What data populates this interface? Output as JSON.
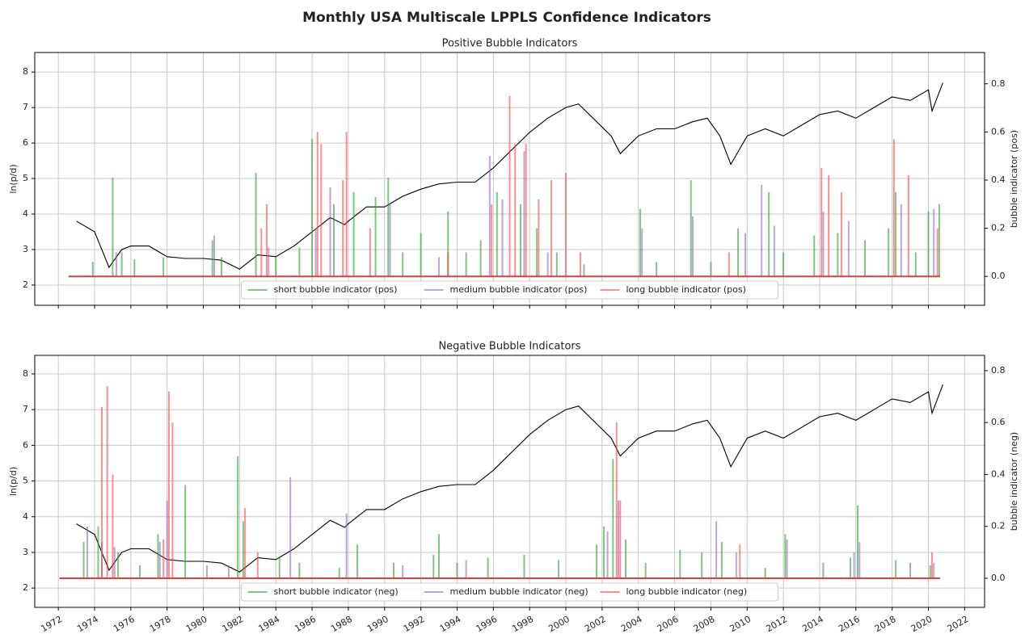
{
  "title": "Monthly USA Multiscale LPPLS Confidence Indicators",
  "chart_data": [
    {
      "type": "line",
      "title": "Positive Bubble Indicators",
      "ylabel": "ln(p/d)",
      "y2label": "bubble indicator (pos)",
      "xlim": [
        1970.7,
        2023.1
      ],
      "ylim": [
        1.43,
        8.55
      ],
      "yticks": [
        2,
        3,
        4,
        5,
        6,
        7,
        8
      ],
      "y2lim": [
        -0.12,
        0.93
      ],
      "y2ticks": [
        {
          "value": 0,
          "label": "0.0"
        },
        0.2,
        0.4,
        0.6,
        0.8
      ],
      "grid": true,
      "legend": "lower center",
      "series": [
        {
          "color": "#000000",
          "x": [
            1973,
            1974,
            1974.8,
            1975.5,
            1976,
            1977,
            1978,
            1979,
            1980,
            1981,
            1982,
            1983,
            1984,
            1985,
            1986,
            1987,
            1987.8,
            1988,
            1989,
            1990,
            1991,
            1992,
            1993,
            1994,
            1995,
            1996,
            1997,
            1998,
            1999,
            2000,
            2000.7,
            2001.5,
            2002.5,
            2003,
            2004,
            2005,
            2006,
            2007,
            2007.8,
            2008.5,
            2009.1,
            2010,
            2011,
            2012,
            2013,
            2014,
            2015,
            2016,
            2017,
            2018,
            2019,
            2020,
            2020.2,
            2020.8
          ],
          "values": [
            3.8,
            3.5,
            2.5,
            3.0,
            3.1,
            3.1,
            2.8,
            2.75,
            2.75,
            2.7,
            2.45,
            2.85,
            2.8,
            3.1,
            3.5,
            3.9,
            3.7,
            3.8,
            4.2,
            4.2,
            4.5,
            4.7,
            4.85,
            4.9,
            4.9,
            5.3,
            5.8,
            6.3,
            6.7,
            7.0,
            7.1,
            6.7,
            6.2,
            5.7,
            6.2,
            6.4,
            6.4,
            6.6,
            6.7,
            6.2,
            5.4,
            6.2,
            6.4,
            6.2,
            6.5,
            6.8,
            6.9,
            6.7,
            7.0,
            7.3,
            7.2,
            7.5,
            6.9,
            7.7
          ]
        },
        {
          "name": "short bubble indicator (pos)",
          "color": "#2ca02c",
          "axis": "y2",
          "x": [
            1973.9,
            1975,
            1975.5,
            1976.2,
            1977.8,
            1980.5,
            1981,
            1982.9,
            1984,
            1985.3,
            1986,
            1987.2,
            1988.3,
            1989.5,
            1990.2,
            1991,
            1992,
            1993.5,
            1994.5,
            1995.3,
            1996.2,
            1997.5,
            1998.4,
            1999.5,
            2001,
            2004.1,
            2005,
            2006.9,
            2008,
            2009.5,
            2011.2,
            2012,
            2013.7,
            2015,
            2016.5,
            2017.8,
            2018.2,
            2019.3,
            2020,
            2020.6
          ],
          "values": [
            0.06,
            0.41,
            0.1,
            0.07,
            0.08,
            0.15,
            0.08,
            0.43,
            0.08,
            0.12,
            0.57,
            0.3,
            0.35,
            0.33,
            0.41,
            0.1,
            0.18,
            0.27,
            0.1,
            0.15,
            0.35,
            0.3,
            0.2,
            0.1,
            0.05,
            0.28,
            0.06,
            0.4,
            0.06,
            0.2,
            0.35,
            0.1,
            0.17,
            0.18,
            0.15,
            0.2,
            0.35,
            0.1,
            0.27,
            0.3
          ]
        },
        {
          "name": "medium bubble indicator (pos)",
          "color": "#9467bd",
          "axis": "y2",
          "x": [
            1975.2,
            1980.6,
            1983.6,
            1986.2,
            1987,
            1990.3,
            1993,
            1995.8,
            1996.5,
            1997.7,
            1999,
            2004.2,
            2007,
            2009.9,
            2010.8,
            2011.5,
            2014.2,
            2015.6,
            2018.5,
            2020.3
          ],
          "values": [
            0.1,
            0.17,
            0.12,
            0.2,
            0.37,
            0.3,
            0.08,
            0.5,
            0.32,
            0.52,
            0.1,
            0.2,
            0.25,
            0.18,
            0.38,
            0.21,
            0.27,
            0.23,
            0.3,
            0.28
          ]
        },
        {
          "name": "long bubble indicator (pos)",
          "color": "#ff4444",
          "axis": "y2",
          "x": [
            1983.2,
            1983.5,
            1986.3,
            1986.5,
            1987.7,
            1987.9,
            1989.2,
            1993.5,
            1995.9,
            1996.9,
            1997.2,
            1997.8,
            1998.5,
            1999.2,
            2000,
            2000.8,
            2009,
            2014.1,
            2014.5,
            2015.2,
            2018.1,
            2018.9,
            2020.5
          ],
          "values": [
            0.2,
            0.3,
            0.6,
            0.55,
            0.4,
            0.6,
            0.2,
            0.1,
            0.3,
            0.75,
            0.55,
            0.55,
            0.32,
            0.4,
            0.43,
            0.1,
            0.1,
            0.45,
            0.42,
            0.35,
            0.57,
            0.42,
            0.2
          ]
        }
      ]
    },
    {
      "type": "line",
      "title": "Negative Bubble Indicators",
      "ylabel": "ln(p/d)",
      "y2label": "bubble indicator (neg)",
      "xlim": [
        1970.7,
        2023.1
      ],
      "xticks": [
        1972,
        1974,
        1976,
        1978,
        1980,
        1982,
        1984,
        1986,
        1988,
        1990,
        1992,
        1994,
        1996,
        1998,
        2000,
        2002,
        2004,
        2006,
        2008,
        2010,
        2012,
        2014,
        2016,
        2018,
        2020,
        2022
      ],
      "ylim": [
        1.46,
        8.52
      ],
      "yticks": [
        2,
        3,
        4,
        5,
        6,
        7,
        8
      ],
      "y2lim": [
        -0.112,
        0.859
      ],
      "y2ticks": [
        {
          "value": 0,
          "label": "0.0"
        },
        0.2,
        0.4,
        0.6,
        0.8
      ],
      "grid": true,
      "legend": "lower center",
      "series": [
        {
          "color": "#000000",
          "x": [
            1973,
            1974,
            1974.8,
            1975.5,
            1976,
            1977,
            1978,
            1979,
            1980,
            1981,
            1982,
            1983,
            1984,
            1985,
            1986,
            1987,
            1987.8,
            1988,
            1989,
            1990,
            1991,
            1992,
            1993,
            1994,
            1995,
            1996,
            1997,
            1998,
            1999,
            2000,
            2000.7,
            2001.5,
            2002.5,
            2003,
            2004,
            2005,
            2006,
            2007,
            2007.8,
            2008.5,
            2009.1,
            2010,
            2011,
            2012,
            2013,
            2014,
            2015,
            2016,
            2017,
            2018,
            2019,
            2020,
            2020.2,
            2020.8
          ],
          "values": [
            3.8,
            3.5,
            2.5,
            3.0,
            3.1,
            3.1,
            2.8,
            2.75,
            2.75,
            2.7,
            2.45,
            2.85,
            2.8,
            3.1,
            3.5,
            3.9,
            3.7,
            3.8,
            4.2,
            4.2,
            4.5,
            4.7,
            4.85,
            4.9,
            4.9,
            5.3,
            5.8,
            6.3,
            6.7,
            7.0,
            7.1,
            6.7,
            6.2,
            5.7,
            6.2,
            6.4,
            6.4,
            6.6,
            6.7,
            6.2,
            5.4,
            6.2,
            6.4,
            6.2,
            6.5,
            6.8,
            6.9,
            6.7,
            7.0,
            7.3,
            7.2,
            7.5,
            6.9,
            7.7
          ]
        },
        {
          "name": "short bubble indicator (neg)",
          "color": "#2ca02c",
          "axis": "y2",
          "x": [
            1973.4,
            1974.2,
            1975.3,
            1976.5,
            1977.5,
            1979,
            1981.9,
            1982.2,
            1984.2,
            1985.3,
            1987.5,
            1988.5,
            1990.5,
            1992.7,
            1993,
            1994,
            1995.7,
            1997.7,
            1999.6,
            2001.7,
            2002.1,
            2002.6,
            2003.3,
            2004.4,
            2006.3,
            2007.5,
            2008.6,
            2011,
            2012.1,
            2014.2,
            2015.7,
            2016.1,
            2018.2,
            2019,
            2020.1
          ],
          "values": [
            0.14,
            0.2,
            0.1,
            0.05,
            0.17,
            0.36,
            0.47,
            0.22,
            0.08,
            0.06,
            0.04,
            0.13,
            0.06,
            0.09,
            0.17,
            0.06,
            0.08,
            0.09,
            0.07,
            0.13,
            0.2,
            0.46,
            0.15,
            0.06,
            0.11,
            0.1,
            0.14,
            0.04,
            0.17,
            0.06,
            0.08,
            0.28,
            0.07,
            0.06,
            0.05
          ]
        },
        {
          "name": "medium bubble indicator (neg)",
          "color": "#9467bd",
          "axis": "y2",
          "x": [
            1973.6,
            1974.4,
            1975.1,
            1977.6,
            1978,
            1980.2,
            1981.4,
            1984.8,
            1987.9,
            1991,
            1994.5,
            2002.3,
            2002.9,
            2008.3,
            2009.4,
            2012.2,
            2015.9,
            2016.2,
            2020.3
          ],
          "values": [
            0.2,
            0.14,
            0.12,
            0.14,
            0.3,
            0.05,
            0.05,
            0.39,
            0.25,
            0.05,
            0.07,
            0.18,
            0.3,
            0.22,
            0.1,
            0.15,
            0.1,
            0.14,
            0.06
          ]
        },
        {
          "name": "long bubble indicator (neg)",
          "color": "#ff4444",
          "axis": "y2",
          "x": [
            1974.4,
            1974.7,
            1975,
            1977.8,
            1978.1,
            1978.3,
            1982.3,
            1983,
            2002.8,
            2003,
            2009.6,
            2020.2
          ],
          "values": [
            0.66,
            0.74,
            0.4,
            0.15,
            0.72,
            0.6,
            0.27,
            0.1,
            0.6,
            0.3,
            0.13,
            0.1
          ]
        }
      ]
    }
  ]
}
